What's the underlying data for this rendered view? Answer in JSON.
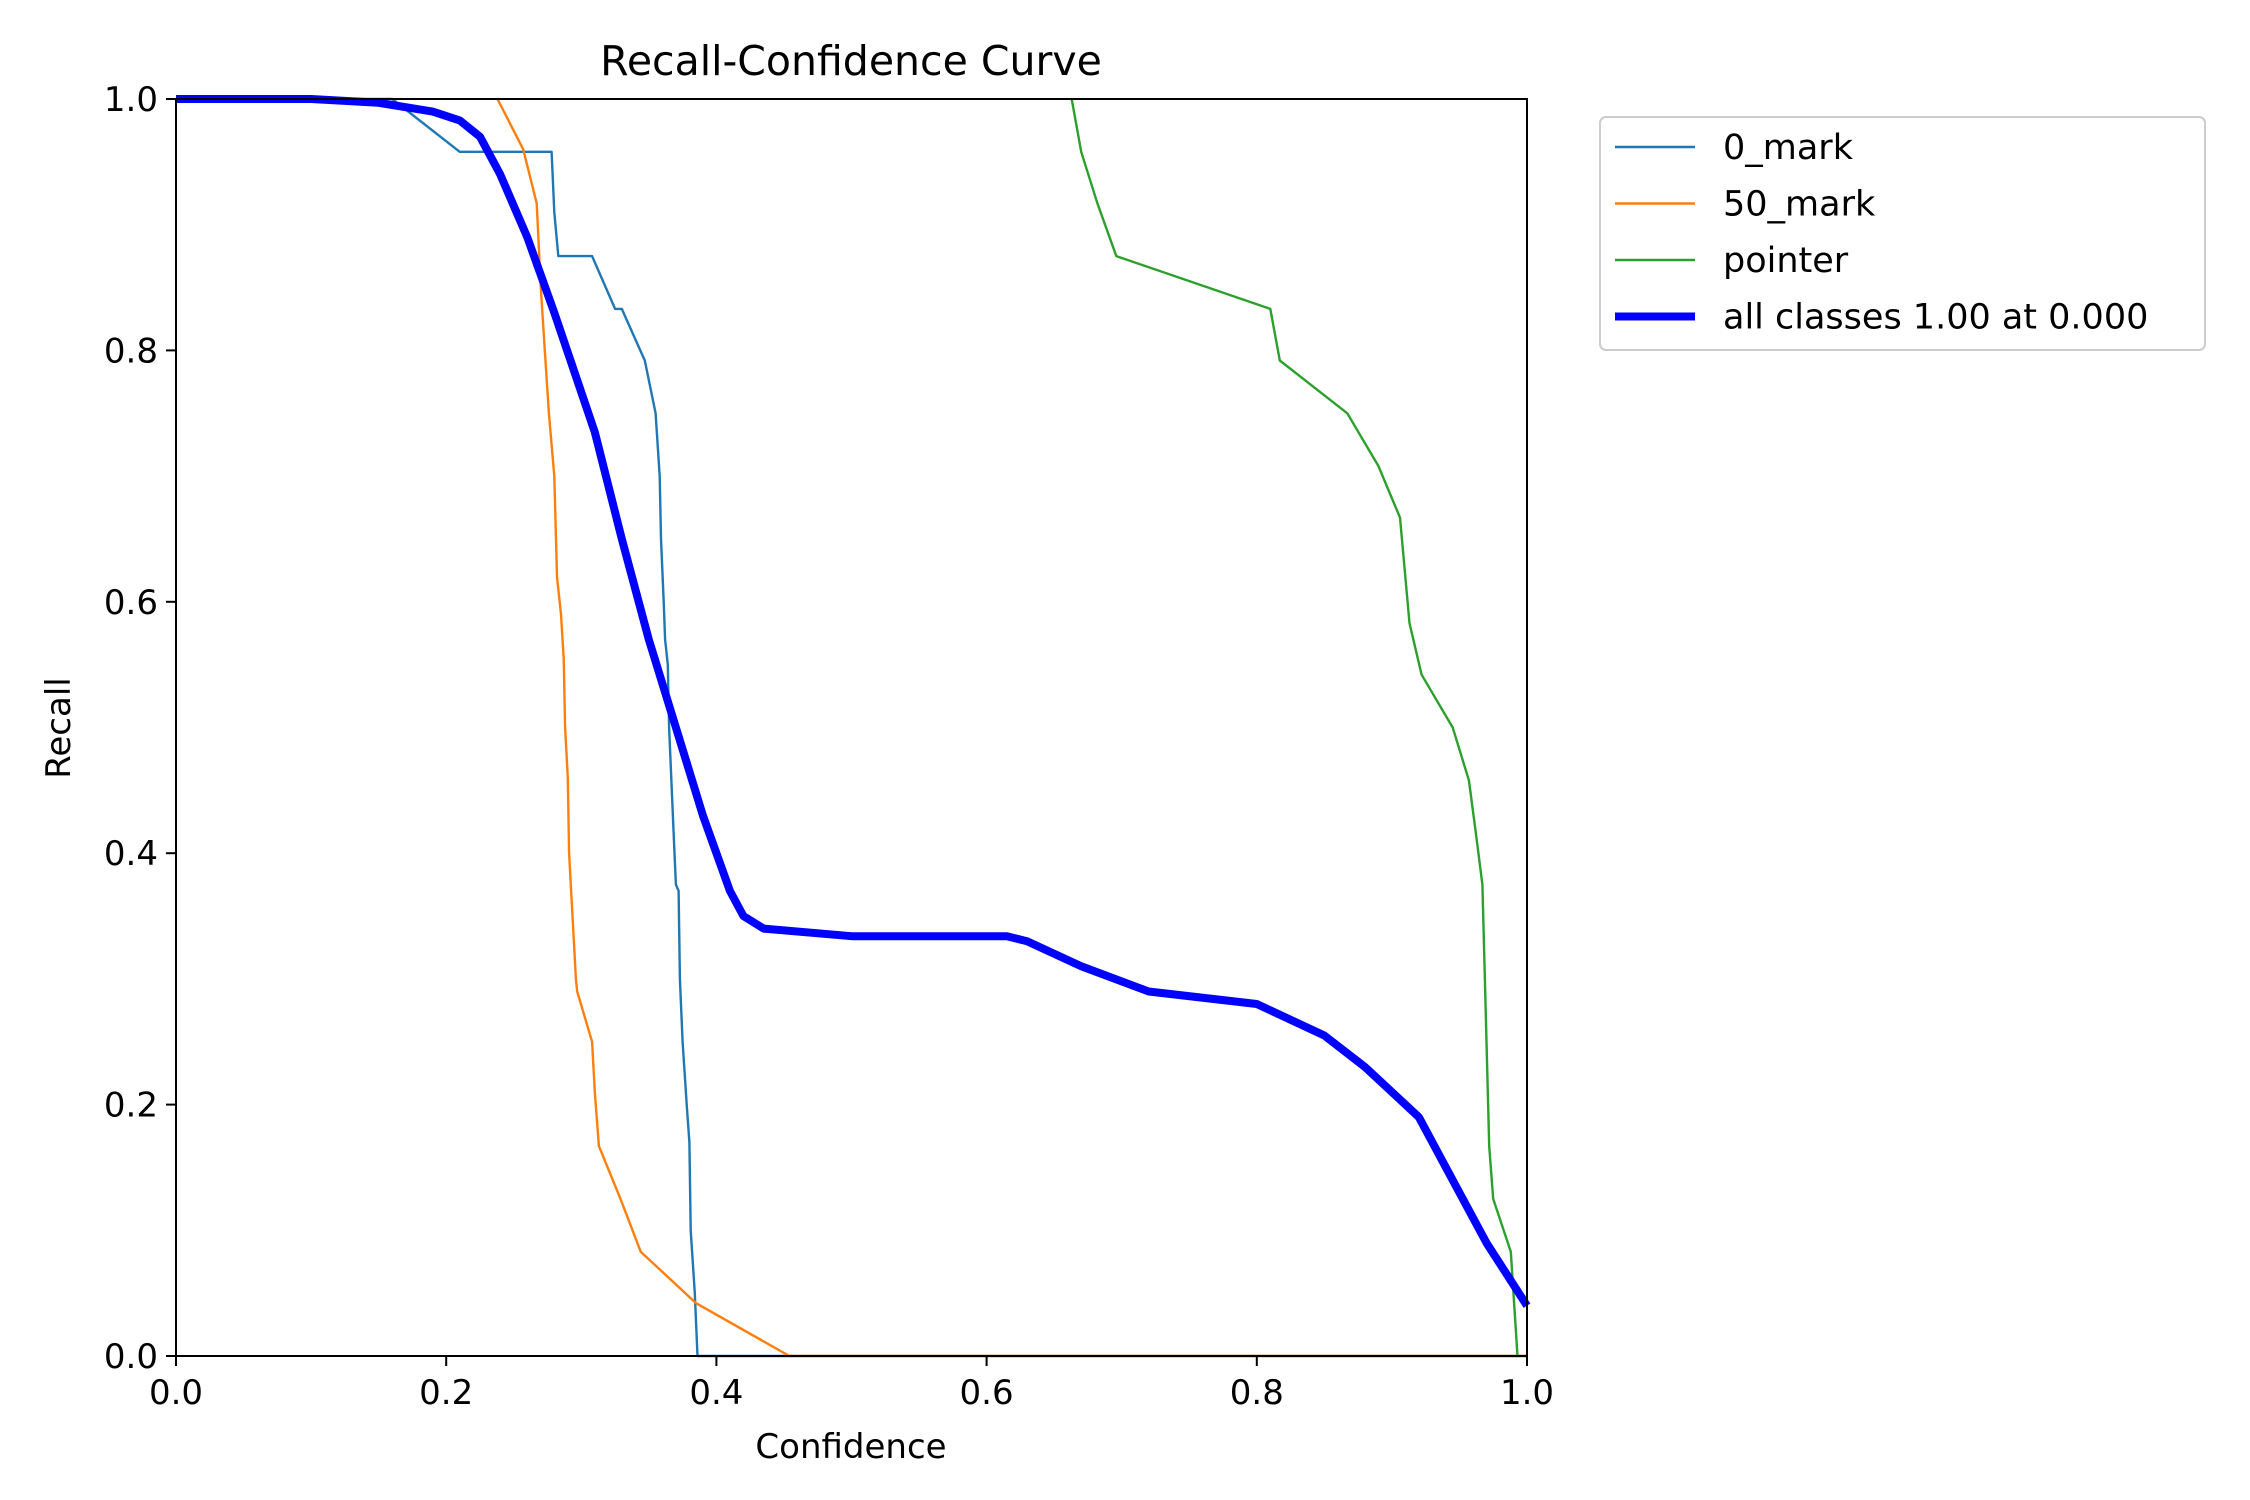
{
  "chart_data": {
    "type": "line",
    "title": "Recall-Confidence Curve",
    "xlabel": "Confidence",
    "ylabel": "Recall",
    "xlim": [
      0,
      1
    ],
    "ylim": [
      0,
      1
    ],
    "xticks": [
      "0.0",
      "0.2",
      "0.4",
      "0.6",
      "0.8",
      "1.0"
    ],
    "yticks": [
      "0.0",
      "0.2",
      "0.4",
      "0.6",
      "0.8",
      "1.0"
    ],
    "grid": false,
    "legend_position": "outside-top-right",
    "series": [
      {
        "name": "0_mark",
        "color": "#1f77b4",
        "line_width": "thin",
        "points": [
          [
            0,
            1
          ],
          [
            0.16,
            1
          ],
          [
            0.21,
            0.958
          ],
          [
            0.278,
            0.958
          ],
          [
            0.28,
            0.91
          ],
          [
            0.283,
            0.875
          ],
          [
            0.308,
            0.875
          ],
          [
            0.325,
            0.833
          ],
          [
            0.33,
            0.833
          ],
          [
            0.347,
            0.792
          ],
          [
            0.355,
            0.75
          ],
          [
            0.358,
            0.7
          ],
          [
            0.359,
            0.65
          ],
          [
            0.361,
            0.6
          ],
          [
            0.362,
            0.57
          ],
          [
            0.364,
            0.55
          ],
          [
            0.365,
            0.5
          ],
          [
            0.367,
            0.45
          ],
          [
            0.369,
            0.4
          ],
          [
            0.37,
            0.375
          ],
          [
            0.372,
            0.37
          ],
          [
            0.373,
            0.3
          ],
          [
            0.375,
            0.25
          ],
          [
            0.378,
            0.2
          ],
          [
            0.38,
            0.17
          ],
          [
            0.381,
            0.1
          ],
          [
            0.384,
            0.05
          ],
          [
            0.386,
            0.0
          ],
          [
            1.0,
            0.0
          ]
        ]
      },
      {
        "name": "50_mark",
        "color": "#ff7f0e",
        "line_width": "thin",
        "points": [
          [
            0.238,
            1.0
          ],
          [
            0.257,
            0.96
          ],
          [
            0.267,
            0.917
          ],
          [
            0.27,
            0.85
          ],
          [
            0.273,
            0.8
          ],
          [
            0.276,
            0.75
          ],
          [
            0.28,
            0.7
          ],
          [
            0.282,
            0.62
          ],
          [
            0.285,
            0.59
          ],
          [
            0.287,
            0.555
          ],
          [
            0.288,
            0.5
          ],
          [
            0.29,
            0.46
          ],
          [
            0.291,
            0.4
          ],
          [
            0.294,
            0.34
          ],
          [
            0.296,
            0.3
          ],
          [
            0.297,
            0.29
          ],
          [
            0.308,
            0.25
          ],
          [
            0.31,
            0.21
          ],
          [
            0.313,
            0.167
          ],
          [
            0.329,
            0.125
          ],
          [
            0.344,
            0.083
          ],
          [
            0.385,
            0.042
          ],
          [
            0.454,
            0.0
          ],
          [
            1.0,
            0.0
          ]
        ]
      },
      {
        "name": "pointer",
        "color": "#2ca02c",
        "line_width": "thin",
        "points": [
          [
            0.663,
            1.0
          ],
          [
            0.67,
            0.958
          ],
          [
            0.682,
            0.917
          ],
          [
            0.696,
            0.875
          ],
          [
            0.81,
            0.833
          ],
          [
            0.817,
            0.792
          ],
          [
            0.867,
            0.75
          ],
          [
            0.89,
            0.708
          ],
          [
            0.906,
            0.667
          ],
          [
            0.913,
            0.583
          ],
          [
            0.922,
            0.542
          ],
          [
            0.945,
            0.5
          ],
          [
            0.957,
            0.458
          ],
          [
            0.962,
            0.417
          ],
          [
            0.967,
            0.375
          ],
          [
            0.97,
            0.25
          ],
          [
            0.972,
            0.167
          ],
          [
            0.975,
            0.125
          ],
          [
            0.988,
            0.083
          ],
          [
            0.993,
            0.0
          ]
        ]
      },
      {
        "name": "all classes 1.00 at 0.000",
        "color": "#0000ff",
        "line_width": "thick",
        "points": [
          [
            0,
            1
          ],
          [
            0.1,
            1.0
          ],
          [
            0.15,
            0.997
          ],
          [
            0.19,
            0.99
          ],
          [
            0.21,
            0.983
          ],
          [
            0.225,
            0.97
          ],
          [
            0.24,
            0.94
          ],
          [
            0.26,
            0.89
          ],
          [
            0.28,
            0.83
          ],
          [
            0.31,
            0.735
          ],
          [
            0.33,
            0.65
          ],
          [
            0.35,
            0.57
          ],
          [
            0.37,
            0.5
          ],
          [
            0.39,
            0.43
          ],
          [
            0.41,
            0.37
          ],
          [
            0.42,
            0.35
          ],
          [
            0.435,
            0.34
          ],
          [
            0.5,
            0.334
          ],
          [
            0.615,
            0.334
          ],
          [
            0.63,
            0.33
          ],
          [
            0.67,
            0.31
          ],
          [
            0.72,
            0.29
          ],
          [
            0.8,
            0.28
          ],
          [
            0.85,
            0.255
          ],
          [
            0.88,
            0.23
          ],
          [
            0.91,
            0.2
          ],
          [
            0.92,
            0.19
          ],
          [
            0.94,
            0.15
          ],
          [
            0.97,
            0.09
          ],
          [
            1.0,
            0.04
          ]
        ]
      }
    ]
  }
}
